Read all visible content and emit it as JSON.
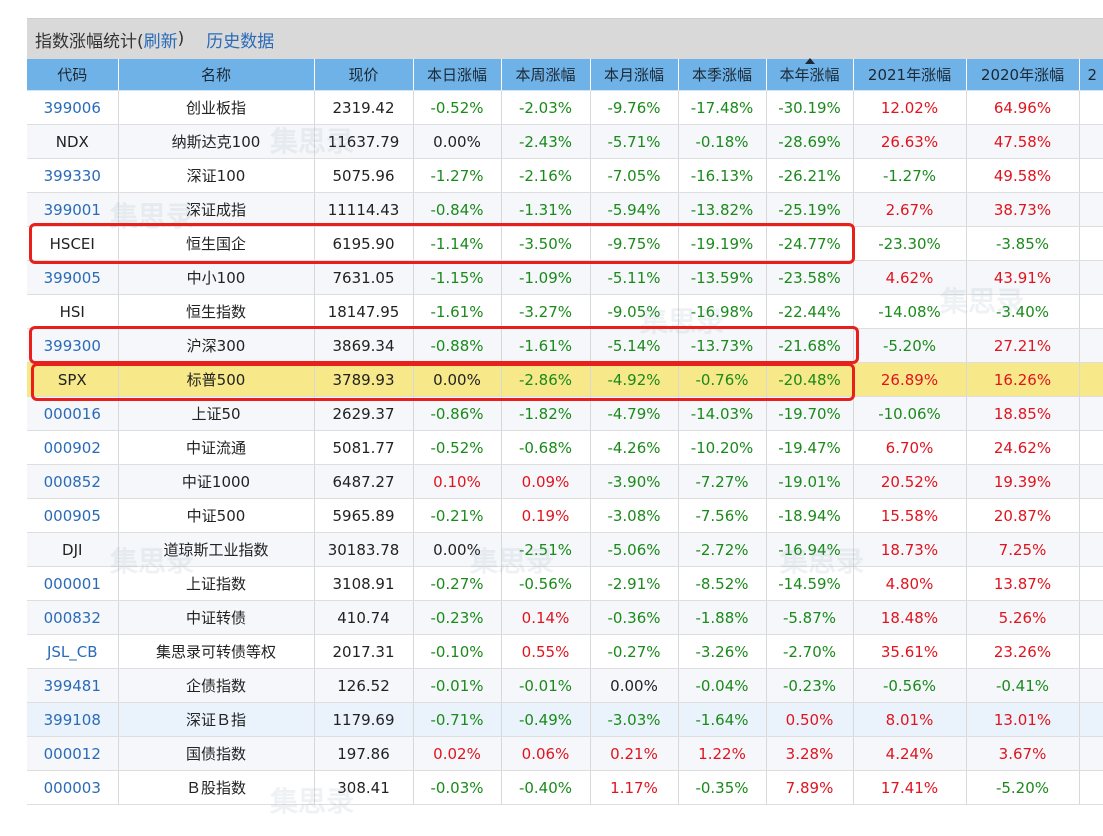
{
  "header": {
    "title": "指数涨幅统计(",
    "refresh": "刷新",
    "title_close": ")",
    "history": "历史数据"
  },
  "columns": [
    "代码",
    "名称",
    "现价",
    "本日涨幅",
    "本周涨幅",
    "本月涨幅",
    "本季涨幅",
    "本年涨幅",
    "2021年涨幅",
    "2020年涨幅",
    "2"
  ],
  "rows": [
    {
      "code": "399006",
      "name": "创业板指",
      "price": "2319.42",
      "d": "-0.52%",
      "w": "-2.03%",
      "m": "-9.76%",
      "q": "-17.48%",
      "y": "-30.19%",
      "y2021": "12.02%",
      "y2020": "64.96%"
    },
    {
      "code": "NDX",
      "name": "纳斯达克100",
      "price": "11637.79",
      "d": "0.00%",
      "w": "-2.43%",
      "m": "-5.71%",
      "q": "-0.18%",
      "y": "-28.69%",
      "y2021": "26.63%",
      "y2020": "47.58%"
    },
    {
      "code": "399330",
      "name": "深证100",
      "price": "5075.96",
      "d": "-1.27%",
      "w": "-2.16%",
      "m": "-7.05%",
      "q": "-16.13%",
      "y": "-26.21%",
      "y2021": "-1.27%",
      "y2020": "49.58%"
    },
    {
      "code": "399001",
      "name": "深证成指",
      "price": "11114.43",
      "d": "-0.84%",
      "w": "-1.31%",
      "m": "-5.94%",
      "q": "-13.82%",
      "y": "-25.19%",
      "y2021": "2.67%",
      "y2020": "38.73%"
    },
    {
      "code": "HSCEI",
      "name": "恒生国企",
      "price": "6195.90",
      "d": "-1.14%",
      "w": "-3.50%",
      "m": "-9.75%",
      "q": "-19.19%",
      "y": "-24.77%",
      "y2021": "-23.30%",
      "y2020": "-3.85%"
    },
    {
      "code": "399005",
      "name": "中小100",
      "price": "7631.05",
      "d": "-1.15%",
      "w": "-1.09%",
      "m": "-5.11%",
      "q": "-13.59%",
      "y": "-23.58%",
      "y2021": "4.62%",
      "y2020": "43.91%"
    },
    {
      "code": "HSI",
      "name": "恒生指数",
      "price": "18147.95",
      "d": "-1.61%",
      "w": "-3.27%",
      "m": "-9.05%",
      "q": "-16.98%",
      "y": "-22.44%",
      "y2021": "-14.08%",
      "y2020": "-3.40%"
    },
    {
      "code": "399300",
      "name": "沪深300",
      "price": "3869.34",
      "d": "-0.88%",
      "w": "-1.61%",
      "m": "-5.14%",
      "q": "-13.73%",
      "y": "-21.68%",
      "y2021": "-5.20%",
      "y2020": "27.21%"
    },
    {
      "code": "SPX",
      "name": "标普500",
      "price": "3789.93",
      "d": "0.00%",
      "w": "-2.86%",
      "m": "-4.92%",
      "q": "-0.76%",
      "y": "-20.48%",
      "y2021": "26.89%",
      "y2020": "16.26%"
    },
    {
      "code": "000016",
      "name": "上证50",
      "price": "2629.37",
      "d": "-0.86%",
      "w": "-1.82%",
      "m": "-4.79%",
      "q": "-14.03%",
      "y": "-19.70%",
      "y2021": "-10.06%",
      "y2020": "18.85%"
    },
    {
      "code": "000902",
      "name": "中证流通",
      "price": "5081.77",
      "d": "-0.52%",
      "w": "-0.68%",
      "m": "-4.26%",
      "q": "-10.20%",
      "y": "-19.47%",
      "y2021": "6.70%",
      "y2020": "24.62%"
    },
    {
      "code": "000852",
      "name": "中证1000",
      "price": "6487.27",
      "d": "0.10%",
      "w": "0.09%",
      "m": "-3.90%",
      "q": "-7.27%",
      "y": "-19.01%",
      "y2021": "20.52%",
      "y2020": "19.39%"
    },
    {
      "code": "000905",
      "name": "中证500",
      "price": "5965.89",
      "d": "-0.21%",
      "w": "0.19%",
      "m": "-3.08%",
      "q": "-7.56%",
      "y": "-18.94%",
      "y2021": "15.58%",
      "y2020": "20.87%"
    },
    {
      "code": "DJI",
      "name": "道琼斯工业指数",
      "price": "30183.78",
      "d": "0.00%",
      "w": "-2.51%",
      "m": "-5.06%",
      "q": "-2.72%",
      "y": "-16.94%",
      "y2021": "18.73%",
      "y2020": "7.25%"
    },
    {
      "code": "000001",
      "name": "上证指数",
      "price": "3108.91",
      "d": "-0.27%",
      "w": "-0.56%",
      "m": "-2.91%",
      "q": "-8.52%",
      "y": "-14.59%",
      "y2021": "4.80%",
      "y2020": "13.87%"
    },
    {
      "code": "000832",
      "name": "中证转债",
      "price": "410.74",
      "d": "-0.23%",
      "w": "0.14%",
      "m": "-0.36%",
      "q": "-1.88%",
      "y": "-5.87%",
      "y2021": "18.48%",
      "y2020": "5.26%"
    },
    {
      "code": "JSL_CB",
      "name": "集思录可转债等权",
      "price": "2017.31",
      "d": "-0.10%",
      "w": "0.55%",
      "m": "-0.27%",
      "q": "-3.26%",
      "y": "-2.70%",
      "y2021": "35.61%",
      "y2020": "23.26%"
    },
    {
      "code": "399481",
      "name": "企债指数",
      "price": "126.52",
      "d": "-0.01%",
      "w": "-0.01%",
      "m": "0.00%",
      "q": "-0.04%",
      "y": "-0.23%",
      "y2021": "-0.56%",
      "y2020": "-0.41%"
    },
    {
      "code": "399108",
      "name": "深证Ｂ指",
      "price": "1179.69",
      "d": "-0.71%",
      "w": "-0.49%",
      "m": "-3.03%",
      "q": "-1.64%",
      "y": "0.50%",
      "y2021": "8.01%",
      "y2020": "13.01%"
    },
    {
      "code": "000012",
      "name": "国债指数",
      "price": "197.86",
      "d": "0.02%",
      "w": "0.06%",
      "m": "0.21%",
      "q": "1.22%",
      "y": "3.28%",
      "y2021": "4.24%",
      "y2020": "3.67%"
    },
    {
      "code": "000003",
      "name": "Ｂ股指数",
      "price": "308.41",
      "d": "-0.03%",
      "w": "-0.40%",
      "m": "1.17%",
      "q": "-0.35%",
      "y": "7.89%",
      "y2021": "17.41%",
      "y2020": "-5.20%"
    }
  ],
  "colors": {
    "negative": "#1a8a1a",
    "positive": "#e0141e",
    "highlight": "#f7e88a",
    "header": "#6fb2e8",
    "annotation": "#e8201c"
  }
}
